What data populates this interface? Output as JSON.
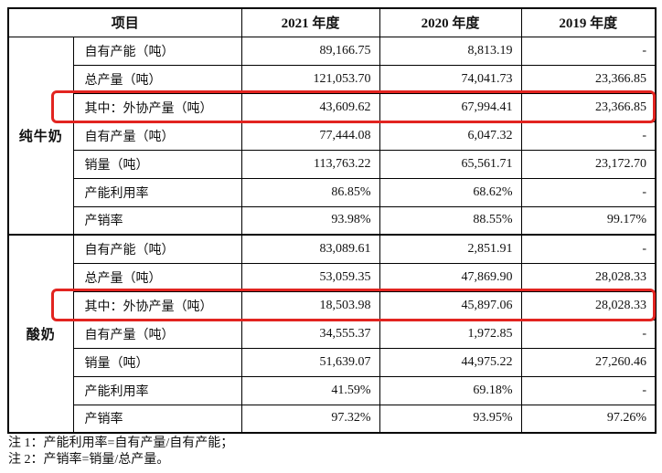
{
  "table": {
    "columns": [
      "项目",
      "2021 年度",
      "2020 年度",
      "2019 年度"
    ],
    "groups": [
      {
        "name": "纯牛奶",
        "rows": [
          {
            "label": "自有产能（吨）",
            "y2021": "89,166.75",
            "y2020": "8,813.19",
            "y2019": "-",
            "highlighted": false
          },
          {
            "label": "总产量（吨）",
            "y2021": "121,053.70",
            "y2020": "74,041.73",
            "y2019": "23,366.85",
            "highlighted": false
          },
          {
            "label": "其中：外协产量（吨）",
            "y2021": "43,609.62",
            "y2020": "67,994.41",
            "y2019": "23,366.85",
            "highlighted": true
          },
          {
            "label": "自有产量（吨）",
            "y2021": "77,444.08",
            "y2020": "6,047.32",
            "y2019": "-",
            "highlighted": false
          },
          {
            "label": "销量（吨）",
            "y2021": "113,763.22",
            "y2020": "65,561.71",
            "y2019": "23,172.70",
            "highlighted": false
          },
          {
            "label": "产能利用率",
            "y2021": "86.85%",
            "y2020": "68.62%",
            "y2019": "-",
            "highlighted": false
          },
          {
            "label": "产销率",
            "y2021": "93.98%",
            "y2020": "88.55%",
            "y2019": "99.17%",
            "highlighted": false
          }
        ]
      },
      {
        "name": "酸奶",
        "rows": [
          {
            "label": "自有产能（吨）",
            "y2021": "83,089.61",
            "y2020": "2,851.91",
            "y2019": "-",
            "highlighted": false
          },
          {
            "label": "总产量（吨）",
            "y2021": "53,059.35",
            "y2020": "47,869.90",
            "y2019": "28,028.33",
            "highlighted": false
          },
          {
            "label": "其中：外协产量（吨）",
            "y2021": "18,503.98",
            "y2020": "45,897.06",
            "y2019": "28,028.33",
            "highlighted": true
          },
          {
            "label": "自有产量（吨）",
            "y2021": "34,555.37",
            "y2020": "1,972.85",
            "y2019": "-",
            "highlighted": false
          },
          {
            "label": "销量（吨）",
            "y2021": "51,639.07",
            "y2020": "44,975.22",
            "y2019": "27,260.46",
            "highlighted": false
          },
          {
            "label": "产能利用率",
            "y2021": "41.59%",
            "y2020": "69.18%",
            "y2019": "-",
            "highlighted": false
          },
          {
            "label": "产销率",
            "y2021": "97.32%",
            "y2020": "93.95%",
            "y2019": "97.26%",
            "highlighted": false
          }
        ]
      }
    ]
  },
  "notes": [
    "注 1：产能利用率=自有产量/自有产能；",
    "注 2：产销率=销量/总产量。"
  ],
  "highlight_color": "#e22420"
}
